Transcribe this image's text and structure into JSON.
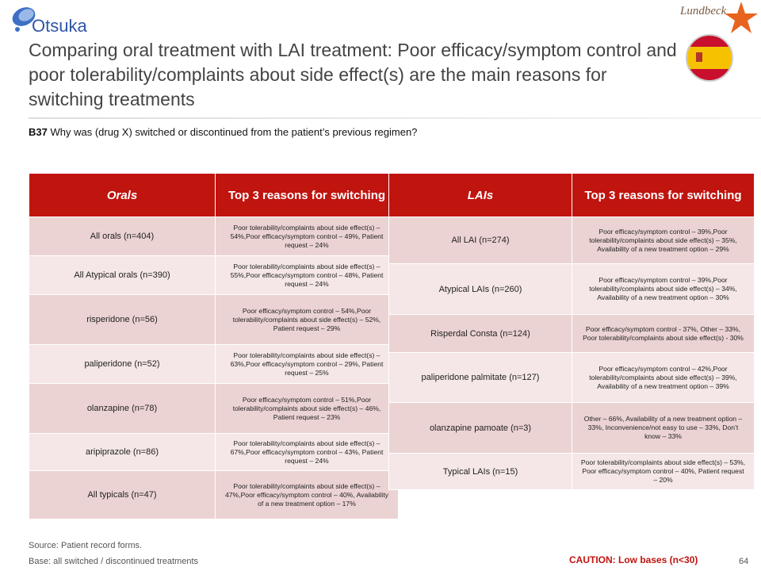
{
  "header": {
    "logo_left": "Otsuka",
    "logo_right": "Lundbeck",
    "title": "Comparing oral treatment with LAI treatment: Poor efficacy/symptom control and poor tolerability/complaints about side effect(s) are the main reasons for switching treatments",
    "question": {
      "code": "B37",
      "text": "Why was (drug X) switched or discontinued from the patient’s previous regimen?"
    }
  },
  "tables": [
    {
      "headers": [
        "Orals",
        "Top 3 reasons for switching"
      ],
      "rows": [
        [
          "All orals (n=404)",
          "Poor tolerability/complaints about side effect(s) – 54%,Poor efficacy/symptom control – 49%, Patient request – 24%"
        ],
        [
          "All Atypical orals (n=390)",
          "Poor tolerability/complaints about side effect(s) – 55%,Poor efficacy/symptom control – 48%, Patient request – 24%"
        ],
        [
          "risperidone (n=56)",
          "Poor efficacy/symptom control – 54%,Poor tolerability/complaints about side effect(s) – 52%, Patient request – 29%"
        ],
        [
          "paliperidone (n=52)",
          "Poor tolerability/complaints about side effect(s) – 63%,Poor efficacy/symptom control – 29%, Patient request – 25%"
        ],
        [
          "olanzapine (n=78)",
          "Poor efficacy/symptom control – 51%,Poor tolerability/complaints about side effect(s) – 46%, Patient request – 23%"
        ],
        [
          "aripiprazole (n=86)",
          "Poor tolerability/complaints about side effect(s) – 67%,Poor efficacy/symptom control – 43%, Patient request – 24%"
        ],
        [
          "All typicals (n=47)",
          "Poor tolerability/complaints about side effect(s) – 47%,Poor efficacy/symptom control – 40%, Availability of a new treatment option – 17%"
        ]
      ]
    },
    {
      "headers": [
        "LAIs",
        "Top 3 reasons for switching"
      ],
      "rows": [
        [
          "All LAI (n=274)",
          "Poor efficacy/symptom control – 39%,Poor tolerability/complaints about side effect(s) – 35%, Availability of a new treatment option – 29%"
        ],
        [
          "Atypical LAIs (n=260)",
          "Poor efficacy/symptom control – 39%,Poor tolerability/complaints about side effect(s) – 34%, Availability of a new treatment option – 30%"
        ],
        [
          "Risperdal Consta (n=124)",
          "Poor efficacy/symptom control - 37%, Other – 33%, Poor tolerability/complaints about side effect(s) - 30%"
        ],
        [
          "paliperidone palmitate (n=127)",
          "Poor efficacy/symptom control – 42%,Poor tolerability/complaints about side effect(s) – 39%, Availability of a new treatment option – 39%"
        ],
        [
          "olanzapine pamoate (n=3)",
          "Other – 66%, Availability of a new treatment option – 33%, Inconvenience/not easy to use – 33%, Don’t know – 33%"
        ],
        [
          "Typical LAIs (n=15)",
          "Poor tolerability/complaints about side effect(s) – 53%, Poor efficacy/symptom control – 40%, Patient request – 20%"
        ]
      ]
    }
  ],
  "footer": {
    "source": "Source: Patient record forms.",
    "base": "Base: all switched / discontinued treatments",
    "caution": "CAUTION: Low bases (n<30)",
    "page": "64"
  }
}
